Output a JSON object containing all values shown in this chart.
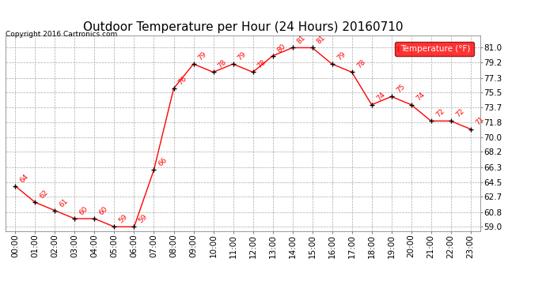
{
  "title": "Outdoor Temperature per Hour (24 Hours) 20160710",
  "copyright": "Copyright 2016 Cartronics.com",
  "legend_label": "Temperature (°F)",
  "hours": [
    "00:00",
    "01:00",
    "02:00",
    "03:00",
    "04:00",
    "05:00",
    "06:00",
    "07:00",
    "08:00",
    "09:00",
    "10:00",
    "11:00",
    "12:00",
    "13:00",
    "14:00",
    "15:00",
    "16:00",
    "17:00",
    "18:00",
    "19:00",
    "20:00",
    "21:00",
    "22:00",
    "23:00"
  ],
  "temperatures": [
    64,
    62,
    61,
    60,
    60,
    59,
    59,
    66,
    76,
    79,
    78,
    79,
    78,
    80,
    81,
    81,
    79,
    78,
    74,
    75,
    74,
    72,
    72,
    71
  ],
  "line_color": "red",
  "marker_color": "black",
  "label_color": "red",
  "background_color": "white",
  "grid_color": "#aaaaaa",
  "yticks": [
    59.0,
    60.8,
    62.7,
    64.5,
    66.3,
    68.2,
    70.0,
    71.8,
    73.7,
    75.5,
    77.3,
    79.2,
    81.0
  ],
  "ylim": [
    58.5,
    82.5
  ],
  "title_fontsize": 11,
  "axis_fontsize": 7.5,
  "label_fontsize": 6.5,
  "fig_width": 6.9,
  "fig_height": 3.75
}
